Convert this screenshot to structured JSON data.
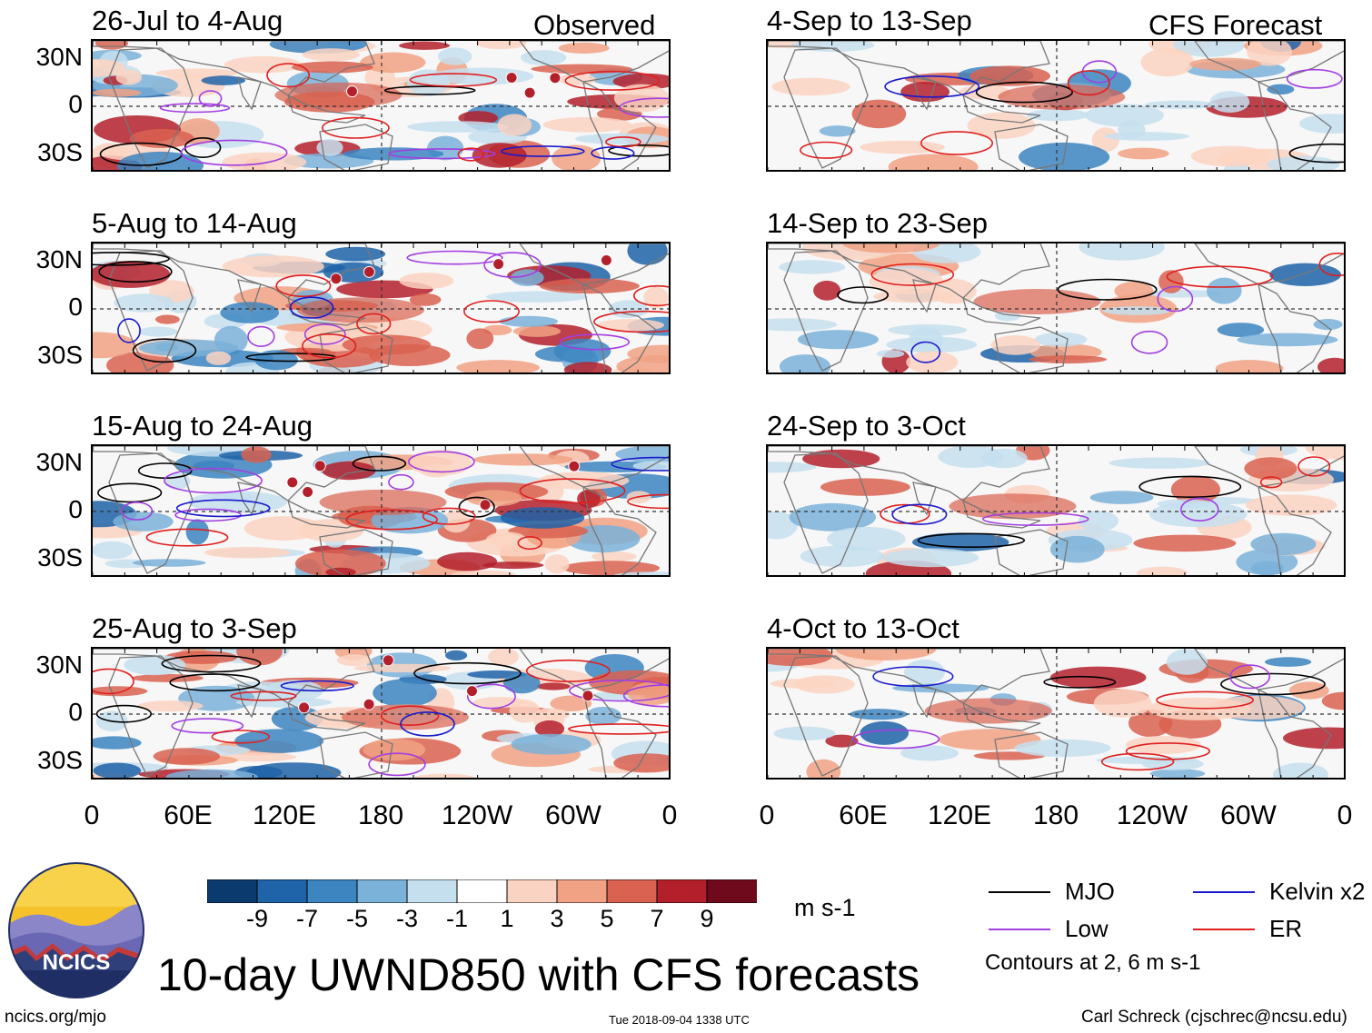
{
  "figure": {
    "title": "10-day UWND850 with CFS forecasts",
    "site": "ncics.org/mjo",
    "timestamp": "Tue 2018-09-04 1338 UTC",
    "author": "Carl Schreck (cjschrec@ncsu.edu)",
    "logo_text": "NCICS"
  },
  "columns": {
    "observed_label": "Observed",
    "forecast_label": "CFS Forecast"
  },
  "panels": [
    {
      "id": "obs-1",
      "title": "26-Jul to 4-Aug",
      "column": "observed"
    },
    {
      "id": "obs-2",
      "title": "5-Aug to 14-Aug",
      "column": "observed"
    },
    {
      "id": "obs-3",
      "title": "15-Aug to 24-Aug",
      "column": "observed"
    },
    {
      "id": "obs-4",
      "title": "25-Aug to 3-Sep",
      "column": "observed"
    },
    {
      "id": "fc-1",
      "title": "4-Sep to 13-Sep",
      "column": "forecast"
    },
    {
      "id": "fc-2",
      "title": "14-Sep to 23-Sep",
      "column": "forecast"
    },
    {
      "id": "fc-3",
      "title": "24-Sep to 3-Oct",
      "column": "forecast"
    },
    {
      "id": "fc-4",
      "title": "4-Oct to 13-Oct",
      "column": "forecast"
    }
  ],
  "axes": {
    "lat_labels": [
      "30N",
      "0",
      "30S"
    ],
    "lon_labels": [
      "0",
      "60E",
      "120E",
      "180",
      "120W",
      "60W",
      "0"
    ]
  },
  "colorbar": {
    "units": "m s-1",
    "tick_labels": [
      "-9",
      "-7",
      "-5",
      "-3",
      "-1",
      "1",
      "3",
      "5",
      "7",
      "9"
    ],
    "colors": [
      "#0b3a6e",
      "#1f63a8",
      "#3c85c1",
      "#7ab2d9",
      "#c6dfee",
      "#ffffff",
      "#fbd3c2",
      "#f1a284",
      "#d96250",
      "#b3202c",
      "#6e0a1c"
    ]
  },
  "legend": {
    "items": [
      {
        "label": "MJO",
        "color": "#000000"
      },
      {
        "label": "Kelvin x2",
        "color": "#1a1acc"
      },
      {
        "label": "Low",
        "color": "#a33ee0"
      },
      {
        "label": "ER",
        "color": "#e01f1f"
      }
    ],
    "note": "Contours at 2, 6 m s-1"
  }
}
